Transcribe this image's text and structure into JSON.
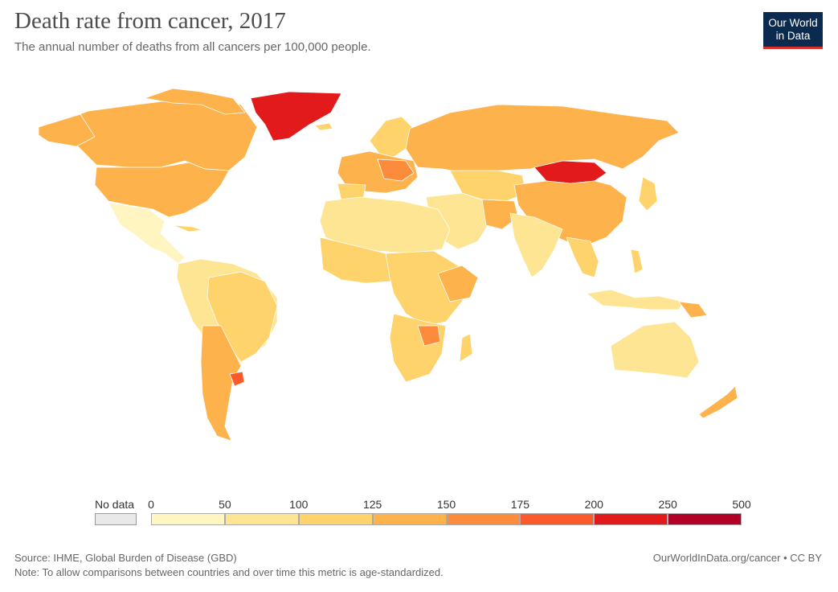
{
  "title": "Death rate from cancer, 2017",
  "subtitle": "The annual number of deaths from all cancers per 100,000 people.",
  "logo": {
    "line1": "Our World",
    "line2": "in Data"
  },
  "legend": {
    "no_data_label": "No data",
    "no_data_color": "#e9e9e9",
    "ticks": [
      "0",
      "50",
      "100",
      "125",
      "150",
      "175",
      "200",
      "250",
      "500"
    ],
    "colors": [
      "#fff5c0",
      "#fee593",
      "#fed36b",
      "#fdb24c",
      "#fc8c3b",
      "#fb5a2c",
      "#e31a1c",
      "#b30026"
    ]
  },
  "map": {
    "ocean_color": "#ffffff",
    "border_color": "#ffffff",
    "highlighted_regions": [
      {
        "name": "Greenland",
        "bin": 6
      },
      {
        "name": "Mongolia",
        "bin": 6
      },
      {
        "name": "Uruguay",
        "bin": 5
      }
    ]
  },
  "footer": {
    "source": "Source: IHME, Global Burden of Disease (GBD)",
    "note": "Note: To allow comparisons between countries and over time this metric is age-standardized.",
    "credit": "OurWorldInData.org/cancer • CC BY"
  }
}
